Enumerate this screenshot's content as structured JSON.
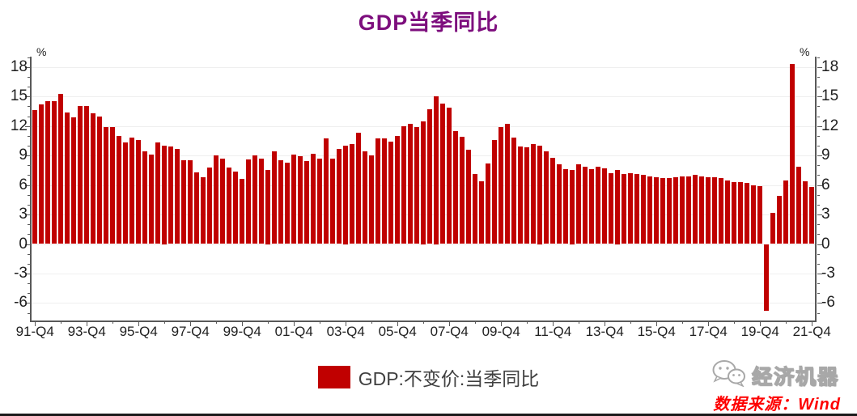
{
  "title": "GDP当季同比",
  "y_axis": {
    "unit_left": "%",
    "unit_right": "%",
    "major_tick_labels": [
      18,
      15,
      12,
      9,
      6,
      3,
      0,
      -3,
      -6
    ]
  },
  "x_axis": {
    "labels": [
      "91-Q4",
      "93-Q4",
      "95-Q4",
      "97-Q4",
      "99-Q4",
      "01-Q4",
      "03-Q4",
      "05-Q4",
      "07-Q4",
      "09-Q4",
      "11-Q4",
      "13-Q4",
      "15-Q4",
      "17-Q4",
      "19-Q4",
      "21-Q4"
    ]
  },
  "legend": {
    "label": "GDP:不变价:当季同比",
    "swatch_color": "#C00000"
  },
  "footer": {
    "logo_text": "经济机器",
    "source_text": "数据来源：Wind"
  },
  "colors": {
    "bar": "#C00000",
    "title": "#7D0E7D",
    "source_text": "#FE0000",
    "axis_line": "#595959",
    "grid_line": "#EFEFEF",
    "tick_label": "#1F1F1F"
  },
  "chart_data": {
    "type": "bar",
    "title": "GDP当季同比",
    "series_name": "GDP:不变价:当季同比",
    "x_start": "1991-Q4",
    "x_end": "2021-Q4",
    "frequency": "quarterly",
    "ylabel": "%",
    "ylim": [
      -7.8,
      19.1
    ],
    "y_major_step": 3,
    "y_minor_step": 1,
    "grid": true,
    "legend_position": "bottom",
    "x_tick_labels": [
      "91-Q4",
      "93-Q4",
      "95-Q4",
      "97-Q4",
      "99-Q4",
      "01-Q4",
      "03-Q4",
      "05-Q4",
      "07-Q4",
      "09-Q4",
      "11-Q4",
      "13-Q4",
      "15-Q4",
      "17-Q4",
      "19-Q4",
      "21-Q4"
    ],
    "values": [
      13.6,
      14.2,
      14.5,
      14.5,
      15.3,
      13.4,
      12.9,
      14.0,
      14.0,
      13.3,
      13.0,
      11.9,
      11.9,
      11.0,
      10.3,
      10.8,
      10.6,
      9.4,
      9.1,
      10.3,
      10.0,
      9.9,
      9.7,
      8.5,
      8.5,
      7.3,
      6.8,
      7.8,
      9.0,
      8.7,
      7.8,
      7.4,
      6.6,
      8.6,
      9.0,
      8.7,
      7.5,
      9.4,
      8.5,
      8.3,
      9.1,
      8.9,
      8.4,
      9.2,
      8.7,
      10.7,
      8.7,
      9.7,
      10.0,
      10.2,
      11.3,
      9.4,
      9.0,
      10.7,
      10.7,
      10.4,
      11.0,
      12.0,
      12.2,
      11.9,
      12.5,
      13.7,
      15.0,
      14.3,
      13.9,
      11.5,
      10.9,
      9.6,
      7.1,
      6.4,
      8.2,
      10.6,
      11.9,
      12.2,
      10.8,
      9.9,
      9.8,
      10.2,
      10.0,
      9.4,
      8.8,
      8.1,
      7.6,
      7.5,
      8.1,
      7.9,
      7.6,
      7.9,
      7.7,
      7.2,
      7.5,
      7.1,
      7.2,
      7.1,
      7.0,
      6.9,
      6.8,
      6.7,
      6.7,
      6.8,
      6.9,
      6.9,
      7.0,
      6.9,
      6.8,
      6.8,
      6.7,
      6.5,
      6.3,
      6.3,
      6.2,
      6.0,
      5.9,
      -6.8,
      3.2,
      4.9,
      6.5,
      18.3,
      7.9,
      6.4,
      5.8
    ]
  }
}
